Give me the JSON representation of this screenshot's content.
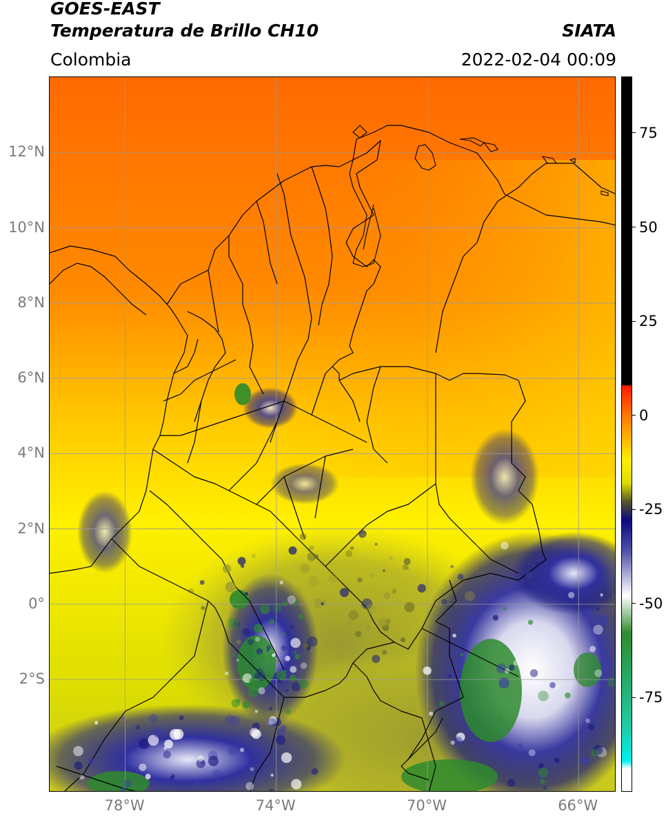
{
  "title": {
    "satellite": "GOES-EAST",
    "product": "Temperatura de Brillo CH10",
    "region": "Colombia",
    "agency": "SIATA",
    "datetime": "2022-02-04 00:09"
  },
  "map": {
    "lon_range": [
      -80,
      -65
    ],
    "lat_range": [
      -5,
      14
    ],
    "lon_ticks": [
      {
        "value": -78,
        "label": "78°W"
      },
      {
        "value": -74,
        "label": "74°W"
      },
      {
        "value": -70,
        "label": "70°W"
      },
      {
        "value": -66,
        "label": "66°W"
      }
    ],
    "lat_ticks": [
      {
        "value": 12,
        "label": "12°N"
      },
      {
        "value": 10,
        "label": "10°N"
      },
      {
        "value": 8,
        "label": "8°N"
      },
      {
        "value": 6,
        "label": "6°N"
      },
      {
        "value": 4,
        "label": "4°N"
      },
      {
        "value": 2,
        "label": "2°N"
      },
      {
        "value": 0,
        "label": "0°"
      },
      {
        "value": -2,
        "label": "2°S"
      }
    ],
    "gridlines": true
  },
  "colorbar": {
    "range": [
      -100,
      90
    ],
    "ticks": [
      {
        "value": 75,
        "label": "75"
      },
      {
        "value": 50,
        "label": "50"
      },
      {
        "value": 25,
        "label": "25"
      },
      {
        "value": 0,
        "label": "0"
      },
      {
        "value": -25,
        "label": "-25"
      },
      {
        "value": -50,
        "label": "-50"
      },
      {
        "value": -75,
        "label": "-75"
      }
    ],
    "stops": [
      {
        "value": 90,
        "color": "#000000"
      },
      {
        "value": 8,
        "color": "#000000"
      },
      {
        "value": 7.9,
        "color": "#ff1a00"
      },
      {
        "value": 0,
        "color": "#ff7700"
      },
      {
        "value": -12,
        "color": "#ffee00"
      },
      {
        "value": -18,
        "color": "#dddd00"
      },
      {
        "value": -23,
        "color": "#55552a"
      },
      {
        "value": -28,
        "color": "#0a0a80"
      },
      {
        "value": -36,
        "color": "#5050a8"
      },
      {
        "value": -48,
        "color": "#ffffff"
      },
      {
        "value": -58,
        "color": "#2e8b2e"
      },
      {
        "value": -82,
        "color": "#20c8a0"
      },
      {
        "value": -92,
        "color": "#00f0f0"
      },
      {
        "value": -94,
        "color": "#ffffff"
      },
      {
        "value": -100,
        "color": "#ffffff"
      }
    ]
  }
}
